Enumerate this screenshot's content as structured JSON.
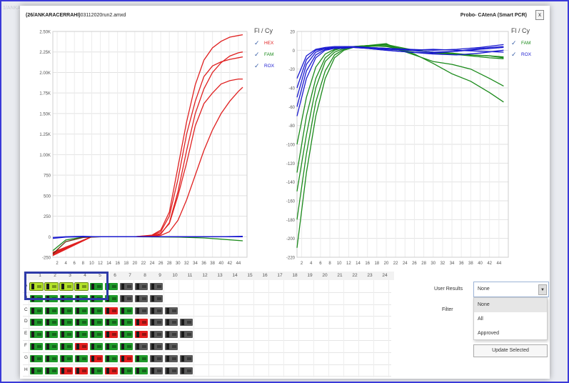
{
  "window": {
    "file_title_bold": "(26/ANKARACERRAHI)",
    "file_title_rest": "03112020run2.amxd",
    "device_title": "Probo- CAtenA (Smart PCR)",
    "close_label": "x"
  },
  "background": {
    "hint_left": "1/ANKA"
  },
  "chart_data": [
    {
      "type": "line",
      "title": "",
      "xlabel": "",
      "ylabel": "",
      "x_ticks": [
        "2",
        "4",
        "6",
        "8",
        "10",
        "12",
        "14",
        "16",
        "18",
        "20",
        "22",
        "24",
        "26",
        "28",
        "30",
        "32",
        "34",
        "36",
        "38",
        "40",
        "42",
        "44"
      ],
      "y_ticks": [
        "2.50K",
        "2.25K",
        "2.00K",
        "1.75K",
        "1.50K",
        "1.25K",
        "1.00K",
        "750",
        "500",
        "250",
        "0",
        "-250"
      ],
      "ylim": [
        -250,
        2500
      ],
      "xlim": [
        1,
        46
      ],
      "grid": true,
      "legend_title": "Fl / Cy",
      "legend": [
        "HEX",
        "FAM",
        "ROX"
      ],
      "series": [
        {
          "name": "HEX",
          "color": "#e02020",
          "x": [
            1,
            10,
            20,
            24,
            26,
            28,
            30,
            32,
            34,
            36,
            38,
            40,
            42,
            44,
            45
          ],
          "values": [
            -230,
            0,
            0,
            20,
            80,
            300,
            850,
            1400,
            1850,
            2150,
            2300,
            2380,
            2430,
            2450,
            2460
          ]
        },
        {
          "name": "HEX",
          "color": "#e02020",
          "x": [
            1,
            10,
            20,
            24,
            26,
            28,
            30,
            32,
            34,
            36,
            38,
            40,
            42,
            44,
            45
          ],
          "values": [
            -210,
            0,
            0,
            15,
            60,
            250,
            700,
            1250,
            1650,
            1950,
            2080,
            2130,
            2160,
            2180,
            2190
          ]
        },
        {
          "name": "HEX",
          "color": "#e02020",
          "x": [
            1,
            10,
            20,
            24,
            26,
            28,
            30,
            32,
            34,
            36,
            38,
            40,
            42,
            44,
            45
          ],
          "values": [
            -200,
            0,
            0,
            10,
            40,
            160,
            500,
            900,
            1350,
            1620,
            1750,
            1860,
            1900,
            1920,
            1920
          ]
        },
        {
          "name": "HEX",
          "color": "#e02020",
          "x": [
            1,
            10,
            20,
            24,
            26,
            28,
            30,
            32,
            34,
            36,
            38,
            40,
            42,
            44,
            45
          ],
          "values": [
            -220,
            0,
            0,
            5,
            30,
            170,
            550,
            1050,
            1500,
            1800,
            2000,
            2120,
            2200,
            2240,
            2250
          ]
        },
        {
          "name": "HEX",
          "color": "#e02020",
          "x": [
            1,
            10,
            20,
            24,
            26,
            28,
            30,
            32,
            34,
            36,
            38,
            40,
            42,
            44,
            45
          ],
          "values": [
            -190,
            0,
            0,
            5,
            15,
            60,
            200,
            450,
            750,
            1050,
            1300,
            1500,
            1650,
            1770,
            1820
          ]
        },
        {
          "name": "FAM",
          "color": "#1a8a1a",
          "x": [
            1,
            4,
            8,
            12,
            20,
            30,
            36,
            40,
            45
          ],
          "values": [
            -170,
            -40,
            -5,
            0,
            0,
            -5,
            -15,
            -30,
            -50
          ]
        },
        {
          "name": "FAM",
          "color": "#6a3010",
          "x": [
            1,
            4,
            8,
            12,
            20,
            30,
            40,
            45
          ],
          "values": [
            -210,
            -60,
            -10,
            0,
            0,
            0,
            0,
            0
          ]
        },
        {
          "name": "ROX",
          "color": "#1a1ad0",
          "x": [
            1,
            4,
            8,
            12,
            20,
            30,
            40,
            45
          ],
          "values": [
            -20,
            -5,
            0,
            0,
            0,
            0,
            0,
            5
          ]
        },
        {
          "name": "ROX",
          "color": "#1a1ad0",
          "x": [
            1,
            4,
            8,
            12,
            20,
            30,
            40,
            45
          ],
          "values": [
            -10,
            0,
            5,
            0,
            0,
            0,
            0,
            0
          ]
        }
      ]
    },
    {
      "type": "line",
      "title": "",
      "xlabel": "",
      "ylabel": "",
      "x_ticks": [
        "2",
        "4",
        "6",
        "8",
        "10",
        "12",
        "14",
        "16",
        "18",
        "20",
        "22",
        "24",
        "26",
        "28",
        "30",
        "32",
        "34",
        "36",
        "38",
        "40",
        "42",
        "44"
      ],
      "y_ticks": [
        "20",
        "0",
        "-20",
        "-40",
        "-60",
        "-80",
        "-100",
        "-120",
        "-140",
        "-160",
        "-180",
        "-200",
        "-220"
      ],
      "ylim": [
        -220,
        20
      ],
      "xlim": [
        1,
        46
      ],
      "grid": true,
      "legend_title": "Fl / Cy",
      "legend": [
        "FAM",
        "ROX"
      ],
      "series": [
        {
          "name": "FAM",
          "color": "#1a8a1a",
          "x": [
            1,
            3,
            5,
            7,
            9,
            11,
            13,
            16,
            20,
            23,
            26,
            30,
            34,
            38,
            42,
            45
          ],
          "values": [
            -210,
            -130,
            -70,
            -30,
            -8,
            0,
            3,
            5,
            7,
            0,
            -5,
            -12,
            -15,
            -20,
            -30,
            -38
          ]
        },
        {
          "name": "FAM",
          "color": "#1a8a1a",
          "x": [
            1,
            3,
            5,
            7,
            9,
            11,
            13,
            16,
            20,
            23,
            26,
            30,
            34,
            38,
            42,
            45
          ],
          "values": [
            -180,
            -110,
            -55,
            -22,
            -5,
            1,
            4,
            4,
            5,
            2,
            0,
            -2,
            -3,
            -5,
            -6,
            -7
          ]
        },
        {
          "name": "FAM",
          "color": "#1a8a1a",
          "x": [
            1,
            3,
            5,
            7,
            9,
            11,
            13,
            16,
            20,
            23,
            26,
            30,
            34,
            38,
            42,
            45
          ],
          "values": [
            -150,
            -90,
            -40,
            -12,
            -2,
            2,
            4,
            5,
            4,
            1,
            -4,
            -14,
            -25,
            -33,
            -45,
            -55
          ]
        },
        {
          "name": "FAM",
          "color": "#1a8a1a",
          "x": [
            1,
            3,
            5,
            7,
            9,
            11,
            13,
            16,
            20,
            23,
            26,
            30,
            34,
            38,
            42,
            45
          ],
          "values": [
            -130,
            -70,
            -30,
            -8,
            0,
            3,
            4,
            3,
            2,
            0,
            -2,
            -3,
            -4,
            -5,
            -6,
            -8
          ]
        },
        {
          "name": "FAM",
          "color": "#1a8a1a",
          "x": [
            1,
            3,
            5,
            7,
            9,
            11,
            13,
            16,
            20,
            23,
            26,
            30,
            34,
            38,
            42,
            45
          ],
          "values": [
            -100,
            -50,
            -18,
            -4,
            1,
            3,
            4,
            5,
            6,
            3,
            0,
            -2,
            -4,
            -6,
            -8,
            -9
          ]
        },
        {
          "name": "ROX",
          "color": "#1a1ad0",
          "x": [
            1,
            3,
            5,
            7,
            9,
            11,
            13,
            16,
            20,
            25,
            30,
            35,
            40,
            45
          ],
          "values": [
            -70,
            -30,
            -8,
            0,
            2,
            3,
            3,
            2,
            0,
            -2,
            -3,
            -1,
            2,
            4
          ]
        },
        {
          "name": "ROX",
          "color": "#1a1ad0",
          "x": [
            1,
            3,
            5,
            7,
            9,
            11,
            13,
            16,
            20,
            25,
            30,
            35,
            40,
            45
          ],
          "values": [
            -60,
            -22,
            -5,
            1,
            2,
            2,
            3,
            3,
            1,
            0,
            1,
            0,
            -1,
            -2
          ]
        },
        {
          "name": "ROX",
          "color": "#1a1ad0",
          "x": [
            1,
            3,
            5,
            7,
            9,
            11,
            13,
            16,
            20,
            25,
            30,
            35,
            40,
            45
          ],
          "values": [
            -50,
            -15,
            -2,
            2,
            3,
            3,
            3,
            2,
            0,
            -2,
            -4,
            -5,
            -3,
            0
          ]
        },
        {
          "name": "ROX",
          "color": "#1a1ad0",
          "x": [
            1,
            3,
            5,
            7,
            9,
            11,
            13,
            16,
            20,
            25,
            30,
            35,
            40,
            45
          ],
          "values": [
            -40,
            -10,
            0,
            2,
            3,
            3,
            4,
            3,
            2,
            1,
            0,
            1,
            3,
            6
          ]
        },
        {
          "name": "ROX",
          "color": "#1a1ad0",
          "x": [
            1,
            3,
            5,
            7,
            9,
            11,
            13,
            16,
            20,
            25,
            30,
            35,
            40,
            45
          ],
          "values": [
            -30,
            -6,
            1,
            3,
            4,
            4,
            4,
            3,
            2,
            0,
            -2,
            -1,
            1,
            3
          ]
        }
      ]
    }
  ],
  "plate": {
    "columns": [
      "1",
      "2",
      "3",
      "4",
      "5",
      "6",
      "7",
      "8",
      "9",
      "10",
      "11",
      "12",
      "13",
      "14",
      "15",
      "16",
      "17",
      "18",
      "19",
      "20",
      "21",
      "22",
      "23",
      "24"
    ],
    "rows": [
      "A",
      "B",
      "C",
      "D",
      "E",
      "F",
      "G",
      "H"
    ],
    "well_colors": {
      "g": "#1f9a2a",
      "r": "#e31e1e",
      "y": "#b4e32a",
      "k": "#5a5a5a"
    },
    "grid": [
      "yyyyggkkk",
      "ggggggkkk",
      "gggggrgkkk",
      "gggggggrkkk",
      "gggggrgrkkk",
      "gggrgggkkk",
      "ggggrgrgkkk",
      "ggrrgrggkkk"
    ]
  },
  "controls": {
    "user_results_label": "User Results",
    "filter_label": "Filter",
    "select_value": "None",
    "arrow_glyph": "▼",
    "options": [
      "None",
      "All",
      "Approved"
    ],
    "update_button": "Update Selected"
  }
}
